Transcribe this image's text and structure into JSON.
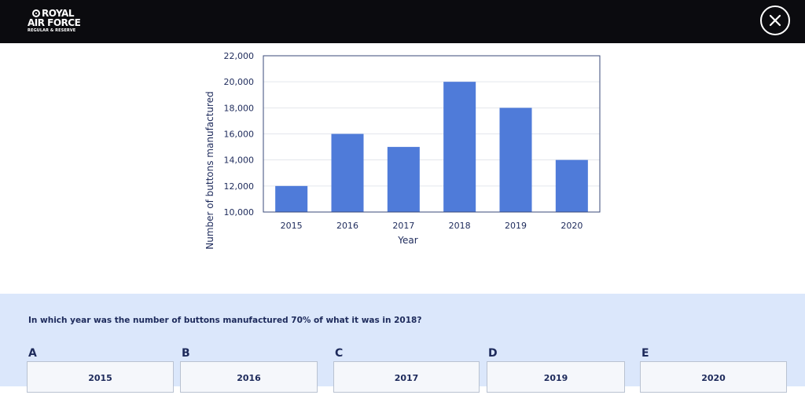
{
  "header": {
    "logo_line1": "ROYAL",
    "logo_line2": "AIR FORCE",
    "logo_line3": "REGULAR & RESERVE",
    "close_icon": "close-circle-icon"
  },
  "colors": {
    "header_bg": "#0b0b0f",
    "bar": "#4f7bd9",
    "axis_text": "#1d2a5b",
    "panel_bg": "#dbe7fb"
  },
  "chart_data": {
    "type": "bar",
    "categories": [
      "2015",
      "2016",
      "2017",
      "2018",
      "2019",
      "2020"
    ],
    "values": [
      12000,
      16000,
      15000,
      20000,
      18000,
      14000
    ],
    "ylim": [
      10000,
      22000
    ],
    "yticks": [
      "10,000",
      "12,000",
      "14,000",
      "16,000",
      "18,000",
      "20,000",
      "22,000"
    ],
    "xlabel": "Year",
    "ylabel": "Number of buttons manufactured",
    "grid": true
  },
  "question": {
    "text": "In which year was the number of buttons manufactured 70% of what it was in 2018?",
    "options": [
      {
        "letter": "A",
        "label": "2015"
      },
      {
        "letter": "B",
        "label": "2016"
      },
      {
        "letter": "C",
        "label": "2017"
      },
      {
        "letter": "D",
        "label": "2019"
      },
      {
        "letter": "E",
        "label": "2020"
      }
    ]
  }
}
